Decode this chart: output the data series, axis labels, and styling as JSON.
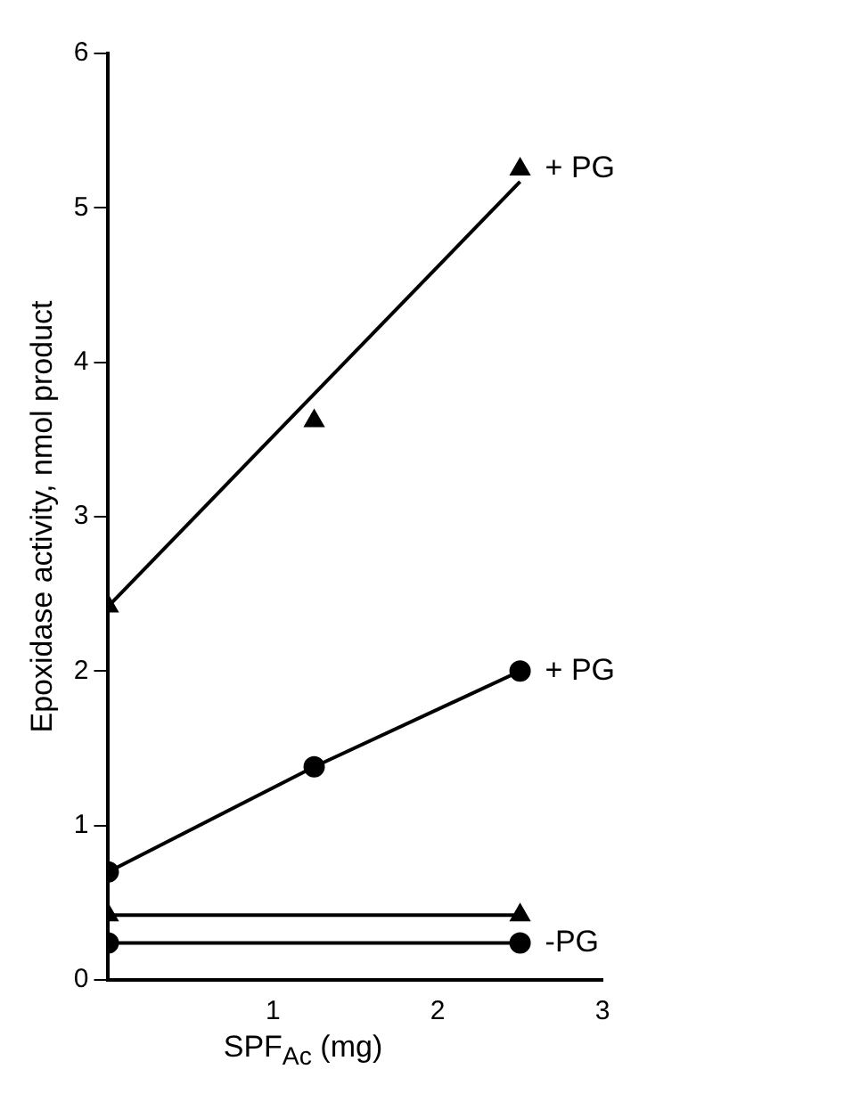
{
  "chart_data": {
    "type": "line",
    "xlabel": "SPF$_{Ac}$ (mg)",
    "ylabel": "Epoxidase activity, nmol product",
    "xlim": [
      0,
      3
    ],
    "xticks": [
      1,
      2,
      3
    ],
    "ylim": [
      0,
      6
    ],
    "yticks": [
      0,
      1,
      2,
      3,
      4,
      5,
      6
    ],
    "grid": false,
    "legend": false,
    "series": [
      {
        "type": "scatter",
        "name": "+ PG",
        "color": "#000000",
        "marker": "triangle",
        "x": [
          0,
          1.25,
          2.5
        ],
        "values": [
          2.42,
          3.62,
          5.25
        ]
      },
      {
        "color": "#000000",
        "marker": "none",
        "x": [
          0,
          2.5
        ],
        "values": [
          2.42,
          5.17
        ]
      },
      {
        "name": "+ PG",
        "color": "#000000",
        "marker": "circle",
        "x": [
          0,
          1.25,
          2.5
        ],
        "values": [
          0.7,
          1.38,
          2.0
        ]
      },
      {
        "color": "#000000",
        "marker": "triangle",
        "x": [
          0,
          2.5
        ],
        "values": [
          0.42,
          0.42
        ]
      },
      {
        "name": "-PG",
        "color": "#000000",
        "marker": "circle",
        "x": [
          0,
          2.5
        ],
        "values": [
          0.24,
          0.24
        ]
      }
    ]
  }
}
